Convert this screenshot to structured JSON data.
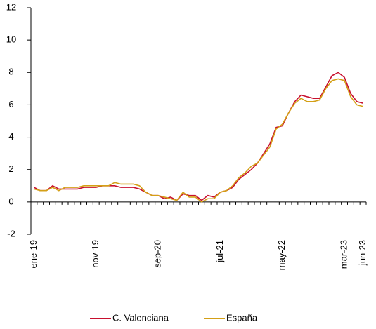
{
  "chart_data": {
    "type": "line",
    "categories": [
      "ene-19",
      null,
      null,
      null,
      null,
      null,
      null,
      null,
      null,
      null,
      "nov-19",
      null,
      null,
      null,
      null,
      null,
      null,
      null,
      null,
      null,
      "sep-20",
      null,
      null,
      null,
      null,
      null,
      null,
      null,
      null,
      null,
      "jul-21",
      null,
      null,
      null,
      null,
      null,
      null,
      null,
      null,
      null,
      "may-22",
      null,
      null,
      null,
      null,
      null,
      null,
      null,
      null,
      null,
      "mar-23",
      null,
      null,
      "jun-23"
    ],
    "series": [
      {
        "name": "C. Valenciana",
        "color": "#c8102e",
        "values": [
          0.9,
          0.7,
          0.7,
          1.0,
          0.8,
          0.8,
          0.8,
          0.8,
          0.9,
          0.9,
          0.9,
          1.0,
          1.0,
          1.0,
          0.9,
          0.9,
          0.9,
          0.8,
          0.6,
          0.4,
          0.4,
          0.2,
          0.3,
          0.1,
          0.5,
          0.4,
          0.4,
          0.1,
          0.4,
          0.3,
          0.6,
          0.7,
          0.9,
          1.4,
          1.7,
          2.0,
          2.4,
          3.0,
          3.6,
          4.6,
          4.7,
          5.5,
          6.2,
          6.6,
          6.5,
          6.4,
          6.4,
          7.1,
          7.8,
          8.0,
          7.7,
          6.7,
          6.2,
          6.1
        ]
      },
      {
        "name": "España",
        "color": "#d4a017",
        "values": [
          0.8,
          0.7,
          0.7,
          0.9,
          0.7,
          0.9,
          0.9,
          0.9,
          1.0,
          1.0,
          1.0,
          1.0,
          1.0,
          1.2,
          1.1,
          1.1,
          1.1,
          1.0,
          0.6,
          0.4,
          0.4,
          0.3,
          0.2,
          0.1,
          0.6,
          0.3,
          0.3,
          0.0,
          0.2,
          0.2,
          0.6,
          0.7,
          1.0,
          1.5,
          1.8,
          2.2,
          2.4,
          2.9,
          3.4,
          4.5,
          4.8,
          5.5,
          6.1,
          6.4,
          6.2,
          6.2,
          6.3,
          7.0,
          7.5,
          7.6,
          7.5,
          6.5,
          6.0,
          5.9
        ]
      }
    ],
    "ylim": [
      -2,
      12
    ],
    "yticks": [
      -2,
      0,
      2,
      4,
      6,
      8,
      10,
      12
    ],
    "legend": "bottom"
  }
}
